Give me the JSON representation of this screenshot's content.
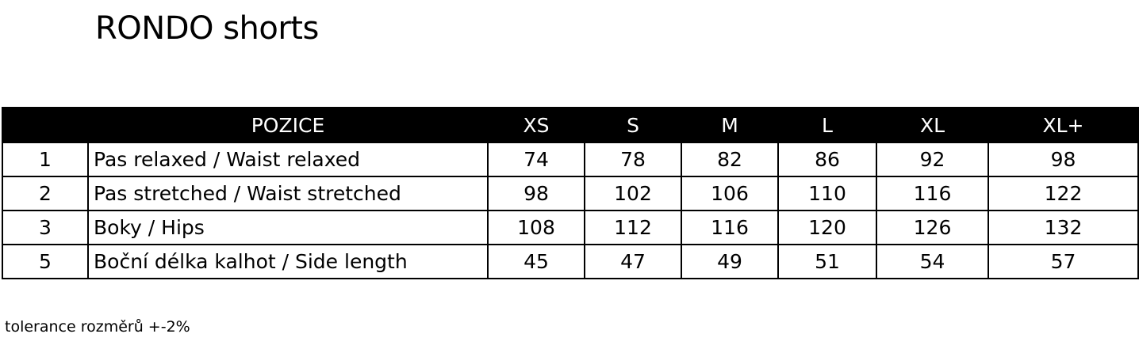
{
  "title": "RONDO shorts",
  "table": {
    "headers": [
      "",
      "POZICE",
      "XS",
      "S",
      "M",
      "L",
      "XL",
      "XL+"
    ],
    "rows": [
      {
        "num": "1",
        "label": "Pas relaxed / Waist relaxed",
        "values": [
          "74",
          "78",
          "82",
          "86",
          "92",
          "98"
        ]
      },
      {
        "num": "2",
        "label": "Pas stretched / Waist stretched",
        "values": [
          "98",
          "102",
          "106",
          "110",
          "116",
          "122"
        ]
      },
      {
        "num": "3",
        "label": "Boky / Hips",
        "values": [
          "108",
          "112",
          "116",
          "120",
          "126",
          "132"
        ]
      },
      {
        "num": "5",
        "label": "Boční délka kalhot / Side length",
        "values": [
          "45",
          "47",
          "49",
          "51",
          "54",
          "57"
        ]
      }
    ]
  },
  "note": "tolerance rozměrů +-2%"
}
